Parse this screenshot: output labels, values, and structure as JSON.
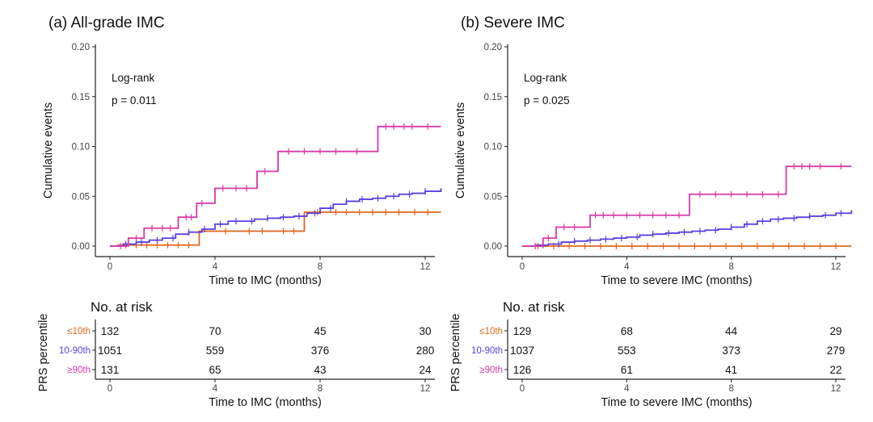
{
  "panels": [
    {
      "title": "(a) All-grade IMC",
      "stat_label": "Log-rank",
      "stat_value": "p = 0.011",
      "ylabel": "Cumulative events",
      "xlabel": "Time to IMC (months)",
      "risk_title": "No. at risk",
      "risk_xlabel": "Time to IMC (months)",
      "risk_ylabel": "PRS percentile",
      "risk_rows": [
        {
          "label": "≤10th",
          "color": "#E0661C",
          "values": [
            "132",
            "70",
            "45",
            "30"
          ]
        },
        {
          "label": "10-90th",
          "color": "#5B3FE0",
          "values": [
            "1051",
            "559",
            "376",
            "280"
          ]
        },
        {
          "label": "≥90th",
          "color": "#D63AA8",
          "values": [
            "131",
            "65",
            "43",
            "24"
          ]
        }
      ]
    },
    {
      "title": "(b) Severe IMC",
      "stat_label": "Log-rank",
      "stat_value": "p = 0.025",
      "ylabel": "Cumulative events",
      "xlabel": "Time to severe IMC (months)",
      "risk_title": "No. at risk",
      "risk_xlabel": "Time to severe IMC (months)",
      "risk_ylabel": "PRS percentile",
      "risk_rows": [
        {
          "label": "≤10th",
          "color": "#E0661C",
          "values": [
            "129",
            "68",
            "44",
            "29"
          ]
        },
        {
          "label": "10-90th",
          "color": "#5B3FE0",
          "values": [
            "1037",
            "553",
            "373",
            "279"
          ]
        },
        {
          "label": "≥90th",
          "color": "#D63AA8",
          "values": [
            "126",
            "61",
            "41",
            "22"
          ]
        }
      ]
    }
  ],
  "chart_data": [
    {
      "type": "line",
      "title": "(a) All-grade IMC",
      "xlabel": "Time to IMC (months)",
      "ylabel": "Cumulative events",
      "xlim": [
        0,
        12.6
      ],
      "ylim": [
        0,
        0.2
      ],
      "x_ticks": [
        0,
        4,
        8,
        12
      ],
      "y_ticks": [
        "0.00",
        "0.05",
        "0.10",
        "0.15",
        "0.20"
      ],
      "grid": false,
      "series": [
        {
          "name": "≤10th",
          "color": "#E0661C",
          "x": [
            0,
            0.3,
            3.4,
            7.4,
            12.6
          ],
          "y": [
            0,
            0.001,
            0.015,
            0.034,
            0.034
          ],
          "censor_x": [
            0.6,
            1.0,
            1.4,
            1.8,
            2.2,
            2.6,
            3.0,
            4.4,
            5.3,
            5.8,
            6.6,
            7.0,
            7.9,
            8.6,
            9.0,
            9.5,
            10.0,
            10.5,
            11.0,
            11.6,
            12.1
          ]
        },
        {
          "name": "10-90th",
          "color": "#5B3FE0",
          "x": [
            0,
            0.5,
            1.0,
            1.5,
            2.0,
            2.5,
            3.0,
            3.5,
            4.0,
            4.5,
            5.0,
            5.5,
            6.0,
            6.5,
            7.0,
            7.5,
            8.0,
            8.5,
            9.0,
            9.5,
            10.0,
            10.5,
            11.0,
            11.5,
            12.0,
            12.6
          ],
          "y": [
            0,
            0.002,
            0.004,
            0.006,
            0.008,
            0.012,
            0.014,
            0.017,
            0.022,
            0.025,
            0.025,
            0.027,
            0.028,
            0.029,
            0.03,
            0.033,
            0.038,
            0.042,
            0.045,
            0.047,
            0.048,
            0.05,
            0.052,
            0.053,
            0.055,
            0.058
          ],
          "censor_x": [
            0.6,
            1.2,
            1.8,
            2.4,
            3.0,
            3.6,
            4.2,
            4.8,
            5.4,
            6.0,
            6.6,
            7.2,
            7.8,
            8.4,
            9.0,
            9.6,
            10.2,
            10.8,
            11.4,
            12.0
          ]
        },
        {
          "name": "≥90th",
          "color": "#D63AA8",
          "x": [
            0,
            0.7,
            1.3,
            2.6,
            3.3,
            4.0,
            5.6,
            6.4,
            10.2,
            12.6
          ],
          "y": [
            0,
            0.008,
            0.018,
            0.029,
            0.043,
            0.058,
            0.075,
            0.095,
            0.12,
            0.12
          ],
          "censor_x": [
            0.4,
            1.0,
            1.6,
            2.0,
            2.3,
            2.9,
            3.1,
            3.5,
            4.3,
            4.8,
            5.2,
            5.9,
            6.8,
            7.4,
            8.0,
            8.6,
            9.4,
            10.5,
            10.8,
            11.2,
            11.5,
            12.1
          ]
        }
      ]
    },
    {
      "type": "line",
      "title": "(b) Severe IMC",
      "xlabel": "Time to severe IMC (months)",
      "ylabel": "Cumulative events",
      "xlim": [
        0,
        12.6
      ],
      "ylim": [
        0,
        0.2
      ],
      "x_ticks": [
        0,
        4,
        8,
        12
      ],
      "y_ticks": [
        "0.00",
        "0.05",
        "0.10",
        "0.15",
        "0.20"
      ],
      "grid": false,
      "series": [
        {
          "name": "≤10th",
          "color": "#E0661C",
          "x": [
            0,
            12.6
          ],
          "y": [
            0,
            0
          ],
          "censor_x": [
            0.6,
            1.2,
            1.8,
            2.4,
            3.0,
            3.6,
            4.2,
            4.8,
            5.4,
            6.0,
            6.6,
            7.2,
            7.8,
            8.4,
            9.0,
            9.6,
            10.2,
            10.8,
            11.4,
            12.0
          ]
        },
        {
          "name": "10-90th",
          "color": "#5B3FE0",
          "x": [
            0,
            0.5,
            1.0,
            1.5,
            2.0,
            2.5,
            3.0,
            3.5,
            4.0,
            4.5,
            5.0,
            5.5,
            6.0,
            6.5,
            7.0,
            7.5,
            8.0,
            8.5,
            9.0,
            9.5,
            10.0,
            10.5,
            11.0,
            11.5,
            12.0,
            12.6
          ],
          "y": [
            0,
            0.001,
            0.002,
            0.004,
            0.005,
            0.006,
            0.007,
            0.008,
            0.009,
            0.011,
            0.012,
            0.013,
            0.014,
            0.015,
            0.016,
            0.017,
            0.019,
            0.022,
            0.025,
            0.027,
            0.028,
            0.029,
            0.03,
            0.031,
            0.033,
            0.036
          ],
          "censor_x": [
            0.8,
            1.4,
            2.0,
            2.6,
            3.2,
            3.8,
            4.4,
            5.0,
            5.6,
            6.2,
            6.8,
            7.4,
            8.0,
            8.6,
            9.2,
            9.8,
            10.4,
            11.0,
            11.6,
            12.2
          ]
        },
        {
          "name": "≥90th",
          "color": "#D63AA8",
          "x": [
            0,
            0.8,
            1.3,
            2.6,
            6.4,
            10.1,
            12.6
          ],
          "y": [
            0,
            0.008,
            0.019,
            0.031,
            0.052,
            0.08,
            0.08
          ],
          "censor_x": [
            0.5,
            1.0,
            1.6,
            2.0,
            2.8,
            3.1,
            3.5,
            4.0,
            4.5,
            5.0,
            5.5,
            6.0,
            6.8,
            7.4,
            8.0,
            8.6,
            9.2,
            9.8,
            10.4,
            10.7,
            11.0,
            11.4,
            12.2
          ]
        }
      ]
    }
  ]
}
